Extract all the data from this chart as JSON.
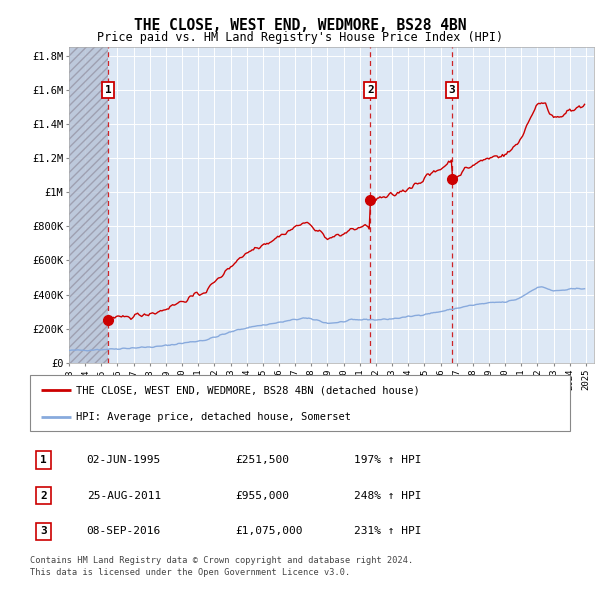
{
  "title": "THE CLOSE, WEST END, WEDMORE, BS28 4BN",
  "subtitle": "Price paid vs. HM Land Registry's House Price Index (HPI)",
  "legend_property": "THE CLOSE, WEST END, WEDMORE, BS28 4BN (detached house)",
  "legend_hpi": "HPI: Average price, detached house, Somerset",
  "footer_line1": "Contains HM Land Registry data © Crown copyright and database right 2024.",
  "footer_line2": "This data is licensed under the Open Government Licence v3.0.",
  "sales": [
    {
      "label": "1",
      "date": "02-JUN-1995",
      "price": 251500,
      "year": 1995.42,
      "hpi_pct": "197%",
      "arrow": "↑"
    },
    {
      "label": "2",
      "date": "25-AUG-2011",
      "price": 955000,
      "year": 2011.65,
      "hpi_pct": "248%",
      "arrow": "↑"
    },
    {
      "label": "3",
      "date": "08-SEP-2016",
      "price": 1075000,
      "year": 2016.69,
      "hpi_pct": "231%",
      "arrow": "↑"
    }
  ],
  "property_line_color": "#cc0000",
  "hpi_line_color": "#88aadd",
  "sale_marker_color": "#cc0000",
  "dashed_line_color": "#cc0000",
  "background_color": "#dde8f5",
  "ylim": [
    0,
    1850000
  ],
  "xlim": [
    1993.0,
    2025.5
  ],
  "yticks": [
    0,
    200000,
    400000,
    600000,
    800000,
    1000000,
    1200000,
    1400000,
    1600000,
    1800000
  ],
  "ytick_labels": [
    "£0",
    "£200K",
    "£400K",
    "£600K",
    "£800K",
    "£1M",
    "£1.2M",
    "£1.4M",
    "£1.6M",
    "£1.8M"
  ],
  "xticks": [
    1993,
    1994,
    1995,
    1996,
    1997,
    1998,
    1999,
    2000,
    2001,
    2002,
    2003,
    2004,
    2005,
    2006,
    2007,
    2008,
    2009,
    2010,
    2011,
    2012,
    2013,
    2014,
    2015,
    2016,
    2017,
    2018,
    2019,
    2020,
    2021,
    2022,
    2023,
    2024,
    2025
  ]
}
